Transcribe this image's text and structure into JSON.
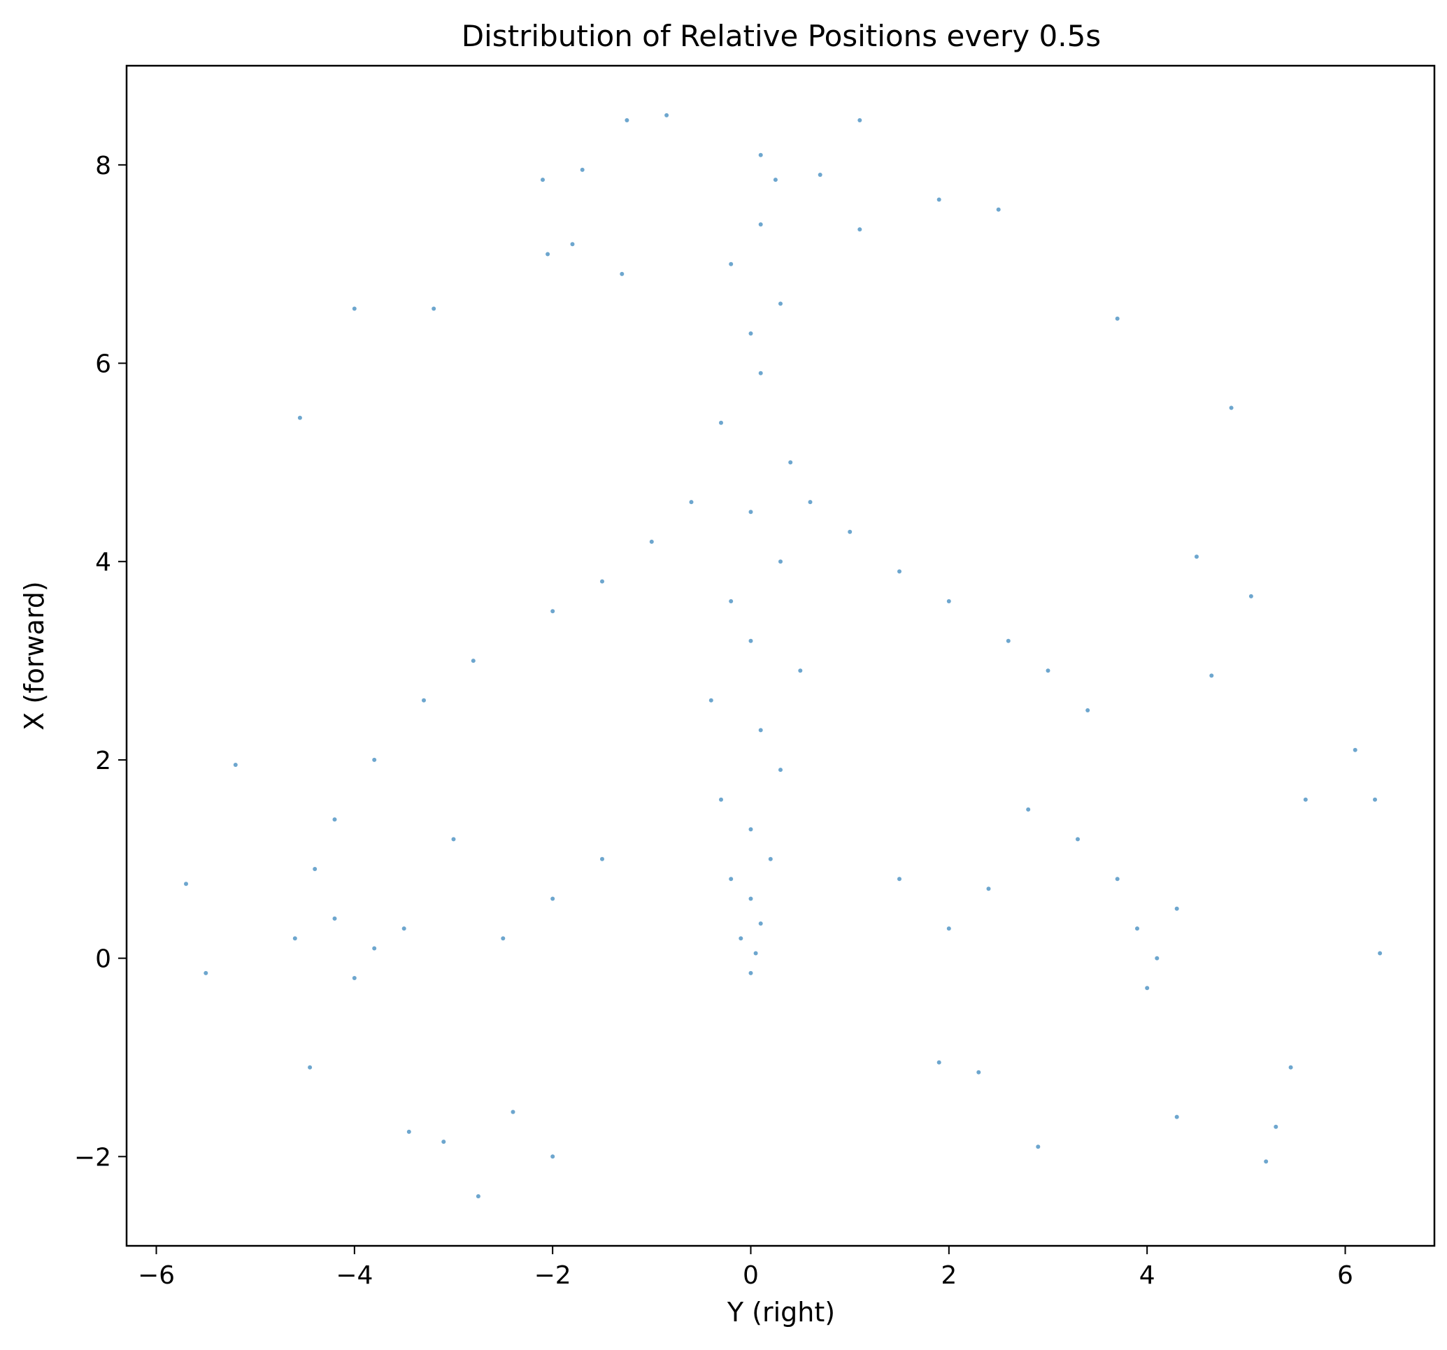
{
  "chart_data": {
    "type": "scatter",
    "title": "Distribution of Relative Positions every 0.5s",
    "xlabel": "Y (right)",
    "ylabel": "X (forward)",
    "xlim": [
      -6.3,
      6.9
    ],
    "ylim": [
      -2.9,
      9.0
    ],
    "xticks": [
      -6,
      -4,
      -2,
      0,
      2,
      4,
      6
    ],
    "yticks": [
      -2,
      0,
      2,
      4,
      6,
      8
    ],
    "xtick_labels": [
      "−6",
      "−4",
      "−2",
      "0",
      "2",
      "4",
      "6"
    ],
    "ytick_labels": [
      "−2",
      "0",
      "2",
      "4",
      "6",
      "8"
    ],
    "grid": false,
    "color": "#1f77b4",
    "series": [
      {
        "values": [
          [
            0.0,
            -0.15
          ],
          [
            0.05,
            0.05
          ],
          [
            -0.1,
            0.2
          ],
          [
            0.1,
            0.35
          ],
          [
            0.0,
            0.6
          ],
          [
            -0.2,
            0.8
          ],
          [
            0.2,
            1.0
          ],
          [
            0.0,
            1.3
          ],
          [
            -0.3,
            1.6
          ],
          [
            0.3,
            1.9
          ],
          [
            0.1,
            2.3
          ],
          [
            -0.4,
            2.6
          ],
          [
            0.5,
            2.9
          ],
          [
            0.0,
            3.2
          ],
          [
            -0.2,
            3.6
          ],
          [
            0.3,
            4.0
          ],
          [
            0.0,
            4.5
          ],
          [
            0.4,
            5.0
          ],
          [
            -0.3,
            5.4
          ],
          [
            0.1,
            5.9
          ],
          [
            0.0,
            6.3
          ],
          [
            0.3,
            6.6
          ],
          [
            -0.2,
            7.0
          ],
          [
            0.1,
            7.4
          ],
          [
            0.1,
            8.1
          ],
          [
            -0.85,
            8.5
          ],
          [
            1.1,
            8.45
          ],
          [
            -1.25,
            8.45
          ],
          [
            -1.7,
            7.95
          ],
          [
            -2.1,
            7.85
          ],
          [
            0.7,
            7.9
          ],
          [
            1.9,
            7.65
          ],
          [
            2.5,
            7.55
          ],
          [
            -1.8,
            7.2
          ],
          [
            1.1,
            7.35
          ],
          [
            -2.8,
            3.0
          ],
          [
            -2.0,
            3.5
          ],
          [
            -1.5,
            3.8
          ],
          [
            -1.0,
            4.2
          ],
          [
            -0.6,
            4.6
          ],
          [
            0.6,
            4.6
          ],
          [
            1.0,
            4.3
          ],
          [
            1.5,
            3.9
          ],
          [
            2.0,
            3.6
          ],
          [
            2.6,
            3.2
          ],
          [
            3.0,
            2.9
          ],
          [
            3.4,
            2.5
          ],
          [
            -3.3,
            2.6
          ],
          [
            -3.8,
            2.0
          ],
          [
            -4.2,
            1.4
          ],
          [
            -4.4,
            0.9
          ],
          [
            -4.2,
            0.4
          ],
          [
            -3.8,
            0.1
          ],
          [
            -4.0,
            -0.2
          ],
          [
            -4.6,
            0.2
          ],
          [
            -3.5,
            0.3
          ],
          [
            3.9,
            0.3
          ],
          [
            4.1,
            0.0
          ],
          [
            4.0,
            -0.3
          ],
          [
            4.3,
            0.5
          ],
          [
            3.7,
            0.8
          ],
          [
            3.3,
            1.2
          ],
          [
            2.8,
            1.5
          ],
          [
            2.4,
            0.7
          ],
          [
            2.0,
            0.3
          ],
          [
            1.5,
            0.8
          ],
          [
            -1.5,
            1.0
          ],
          [
            -2.0,
            0.6
          ],
          [
            -2.5,
            0.2
          ],
          [
            -3.0,
            1.2
          ],
          [
            -5.7,
            0.75
          ],
          [
            -5.5,
            -0.15
          ],
          [
            -5.2,
            1.95
          ],
          [
            -4.55,
            5.45
          ],
          [
            -4.0,
            6.55
          ],
          [
            -3.2,
            6.55
          ],
          [
            -4.45,
            -1.1
          ],
          [
            -3.45,
            -1.75
          ],
          [
            -3.1,
            -1.85
          ],
          [
            -2.75,
            -2.4
          ],
          [
            -2.4,
            -1.55
          ],
          [
            -2.0,
            -2.0
          ],
          [
            1.9,
            -1.05
          ],
          [
            2.3,
            -1.15
          ],
          [
            2.9,
            -1.9
          ],
          [
            4.3,
            -1.6
          ],
          [
            5.2,
            -2.05
          ],
          [
            5.3,
            -1.7
          ],
          [
            5.45,
            -1.1
          ],
          [
            6.1,
            2.1
          ],
          [
            6.3,
            1.6
          ],
          [
            6.35,
            0.05
          ],
          [
            5.6,
            1.6
          ],
          [
            4.85,
            5.55
          ],
          [
            3.7,
            6.45
          ],
          [
            4.5,
            4.05
          ],
          [
            4.65,
            2.85
          ],
          [
            5.05,
            3.65
          ],
          [
            -2.05,
            7.1
          ],
          [
            0.25,
            7.85
          ],
          [
            -1.3,
            6.9
          ]
        ]
      }
    ]
  }
}
